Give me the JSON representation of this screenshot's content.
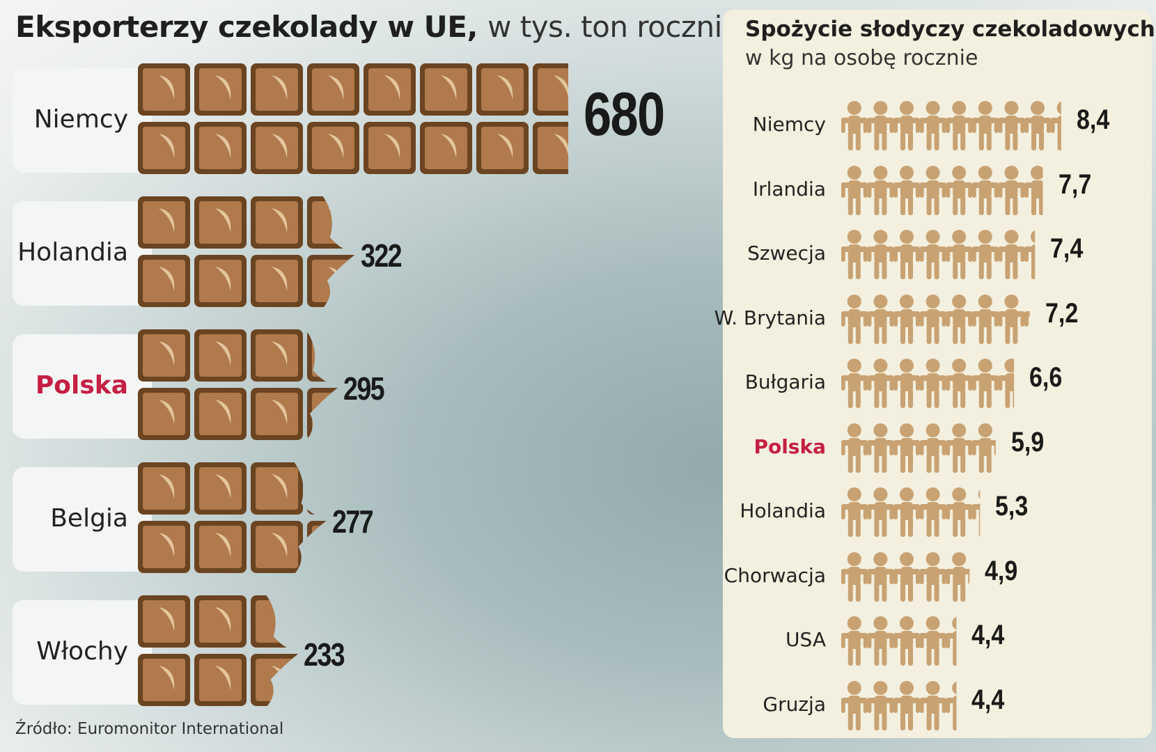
{
  "left_chart": {
    "title_bold": "Eksporterzy czekolady w UE,",
    "title_rest": "w tys. ton rocznie",
    "source": "Źródło: Euromonitor International"
  },
  "right_chart": {
    "title": "Spożycie słodyczy czekoladowych",
    "subtitle": "w kg na osobę rocznie"
  },
  "colors": {
    "chocolate_border": "#6b4421",
    "chocolate_fill": "#b07a4c",
    "chocolate_highlight": "#e3c69c",
    "figure_color": "#c9a273",
    "highlight_country": "#c51f43",
    "panel_bg": "#f3f0df"
  },
  "chart_data": [
    {
      "type": "bar",
      "orientation": "horizontal",
      "title": "Eksporterzy czekolady w UE, w tys. ton rocznie",
      "unit": "tys. ton",
      "categories": [
        "Niemcy",
        "Holandia",
        "Polska",
        "Belgia",
        "Włochy"
      ],
      "values": [
        680,
        322,
        295,
        277,
        233
      ],
      "value_labels": [
        "680",
        "322",
        "295",
        "277",
        "233"
      ],
      "highlight": "Polska",
      "mark": "chocolate-bar"
    },
    {
      "type": "bar",
      "orientation": "horizontal",
      "title": "Spożycie słodyczy czekoladowych w kg na osobę rocznie",
      "unit": "kg na osobę",
      "categories": [
        "Niemcy",
        "Irlandia",
        "Szwecja",
        "W. Brytania",
        "Bułgaria",
        "Polska",
        "Holandia",
        "Chorwacja",
        "USA",
        "Gruzja"
      ],
      "values": [
        8.4,
        7.7,
        7.4,
        7.2,
        6.6,
        5.9,
        5.3,
        4.9,
        4.4,
        4.4
      ],
      "value_labels": [
        "8,4",
        "7,7",
        "7,4",
        "7,2",
        "6,6",
        "5,9",
        "5,3",
        "4,9",
        "4,4",
        "4,4"
      ],
      "highlight": "Polska",
      "mark": "person-figure"
    }
  ]
}
